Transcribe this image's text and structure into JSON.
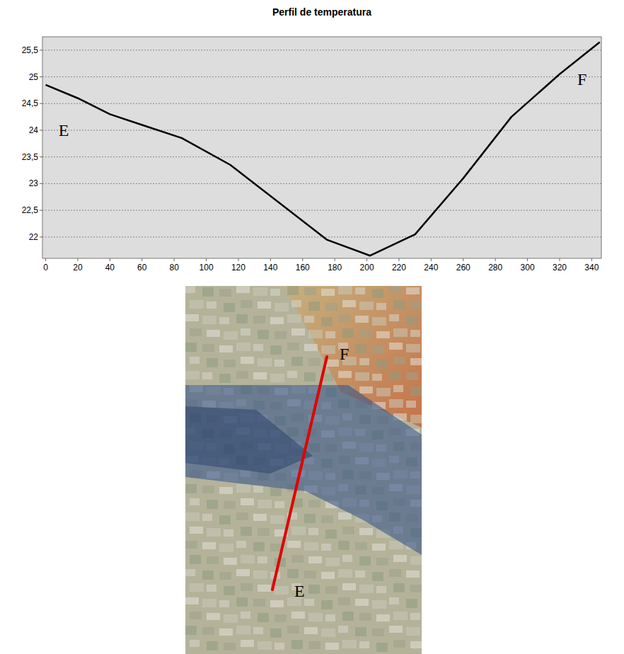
{
  "chart_data": {
    "type": "line",
    "title": "Perfil de temperatura",
    "x": [
      0,
      20,
      40,
      60,
      85,
      115,
      145,
      175,
      202,
      230,
      260,
      290,
      320,
      345
    ],
    "values": [
      24.85,
      24.6,
      24.3,
      24.1,
      23.85,
      23.35,
      22.65,
      21.95,
      21.65,
      22.05,
      23.1,
      24.25,
      25.05,
      25.65
    ],
    "color": "#000000",
    "xlim": [
      -2,
      346
    ],
    "xticks": [
      0,
      20,
      40,
      60,
      80,
      100,
      120,
      140,
      160,
      180,
      200,
      220,
      240,
      260,
      280,
      300,
      320,
      340
    ],
    "ylim": [
      21.6,
      25.75
    ],
    "yticks": [
      22,
      {
        "value": 22.5,
        "label": "22,5"
      },
      23,
      {
        "value": 23.5,
        "label": "23,5"
      },
      24,
      {
        "value": 24.5,
        "label": "24,5"
      },
      25,
      {
        "value": 25.5,
        "label": "25,5"
      }
    ],
    "grid": true,
    "annotations": [
      {
        "text": "E",
        "x": 8,
        "y": 24.0
      },
      {
        "text": "F",
        "x": 331,
        "y": 24.95
      }
    ]
  },
  "map": {
    "start_label": "E",
    "end_label": "F"
  }
}
